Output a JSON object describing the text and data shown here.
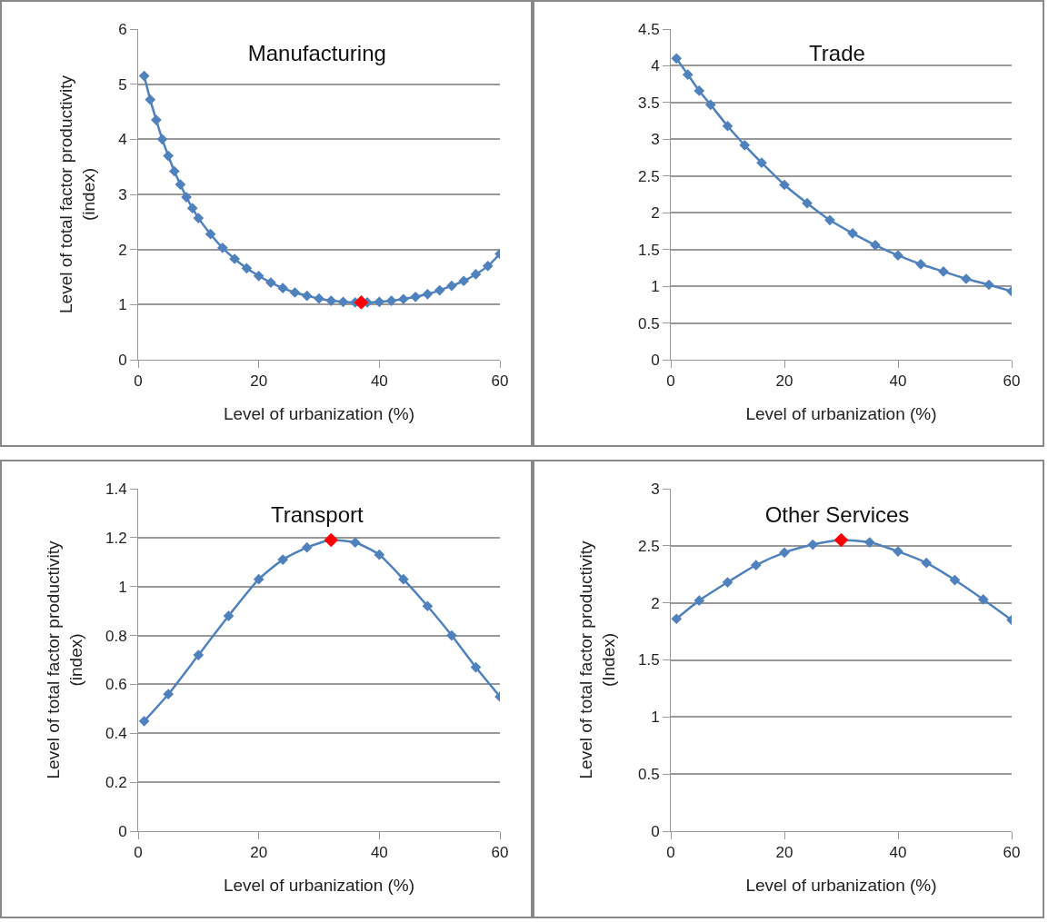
{
  "chart_data": [
    {
      "type": "line",
      "title": "Manufacturing",
      "xlabel": "Level of urbanization (%)",
      "ylabel": "Level of total factor productivity\n(index)",
      "xlim": [
        0,
        60
      ],
      "xticks": [
        0,
        20,
        40,
        60
      ],
      "ylim": [
        0,
        6
      ],
      "yticks": [
        0,
        1,
        2,
        3,
        4,
        5,
        6
      ],
      "grid": "y",
      "marker": "diamond",
      "series": [
        {
          "color": "#4f81bd",
          "x": [
            1,
            2,
            3,
            4,
            5,
            6,
            7,
            8,
            9,
            10,
            12,
            14,
            16,
            18,
            20,
            22,
            24,
            26,
            28,
            30,
            32,
            34,
            36,
            38,
            40,
            42,
            44,
            46,
            48,
            50,
            52,
            54,
            56,
            58,
            60
          ],
          "values": [
            5.15,
            4.72,
            4.35,
            4.0,
            3.7,
            3.42,
            3.18,
            2.95,
            2.75,
            2.57,
            2.28,
            2.03,
            1.83,
            1.66,
            1.52,
            1.4,
            1.3,
            1.22,
            1.16,
            1.11,
            1.07,
            1.05,
            1.04,
            1.04,
            1.05,
            1.07,
            1.1,
            1.14,
            1.19,
            1.26,
            1.34,
            1.43,
            1.55,
            1.7,
            1.92
          ]
        },
        {
          "type": "scatter",
          "color": "#ff0000",
          "x": [
            37
          ],
          "values": [
            1.04
          ]
        }
      ]
    },
    {
      "type": "line",
      "title": "Trade",
      "xlabel": "Level of urbanization (%)",
      "xlim": [
        0,
        60
      ],
      "xticks": [
        0,
        20,
        40,
        60
      ],
      "ylim": [
        0,
        4.5
      ],
      "yticks": [
        0,
        0.5,
        1,
        1.5,
        2,
        2.5,
        3,
        3.5,
        4,
        4.5
      ],
      "grid": "y",
      "marker": "diamond",
      "series": [
        {
          "color": "#4f81bd",
          "x": [
            1,
            3,
            5,
            7,
            10,
            13,
            16,
            20,
            24,
            28,
            32,
            36,
            40,
            44,
            48,
            52,
            56,
            60
          ],
          "values": [
            4.1,
            3.88,
            3.66,
            3.47,
            3.18,
            2.92,
            2.68,
            2.38,
            2.13,
            1.9,
            1.72,
            1.56,
            1.42,
            1.3,
            1.2,
            1.1,
            1.02,
            0.93
          ]
        }
      ]
    },
    {
      "type": "line",
      "title": "Transport",
      "xlabel": "Level of urbanization (%)",
      "ylabel": "Level of total factor productivity\n(index)",
      "xlim": [
        0,
        60
      ],
      "xticks": [
        0,
        20,
        40,
        60
      ],
      "ylim": [
        0,
        1.4
      ],
      "yticks": [
        0,
        0.2,
        0.4,
        0.6,
        0.8,
        1,
        1.2,
        1.4
      ],
      "grid": "y",
      "marker": "diamond",
      "series": [
        {
          "color": "#4f81bd",
          "x": [
            1,
            5,
            10,
            15,
            20,
            24,
            28,
            32,
            36,
            40,
            44,
            48,
            52,
            56,
            60
          ],
          "values": [
            0.45,
            0.56,
            0.72,
            0.88,
            1.03,
            1.11,
            1.16,
            1.19,
            1.18,
            1.13,
            1.03,
            0.92,
            0.8,
            0.67,
            0.55
          ]
        },
        {
          "type": "scatter",
          "color": "#ff0000",
          "x": [
            32
          ],
          "values": [
            1.19
          ]
        }
      ]
    },
    {
      "type": "line",
      "title": "Other Services",
      "xlabel": "Level of urbanization (%)",
      "ylabel": "Level of total factor productivity\n(Index)",
      "xlim": [
        0,
        60
      ],
      "xticks": [
        0,
        20,
        40,
        60
      ],
      "ylim": [
        0,
        3
      ],
      "yticks": [
        0,
        0.5,
        1,
        1.5,
        2,
        2.5,
        3
      ],
      "grid": "y",
      "marker": "diamond",
      "series": [
        {
          "color": "#4f81bd",
          "x": [
            1,
            5,
            10,
            15,
            20,
            25,
            30,
            35,
            40,
            45,
            50,
            55,
            60
          ],
          "values": [
            1.86,
            2.02,
            2.18,
            2.33,
            2.44,
            2.51,
            2.55,
            2.53,
            2.45,
            2.35,
            2.2,
            2.03,
            1.85
          ]
        },
        {
          "type": "scatter",
          "color": "#ff0000",
          "x": [
            30
          ],
          "values": [
            2.55
          ]
        }
      ]
    }
  ]
}
